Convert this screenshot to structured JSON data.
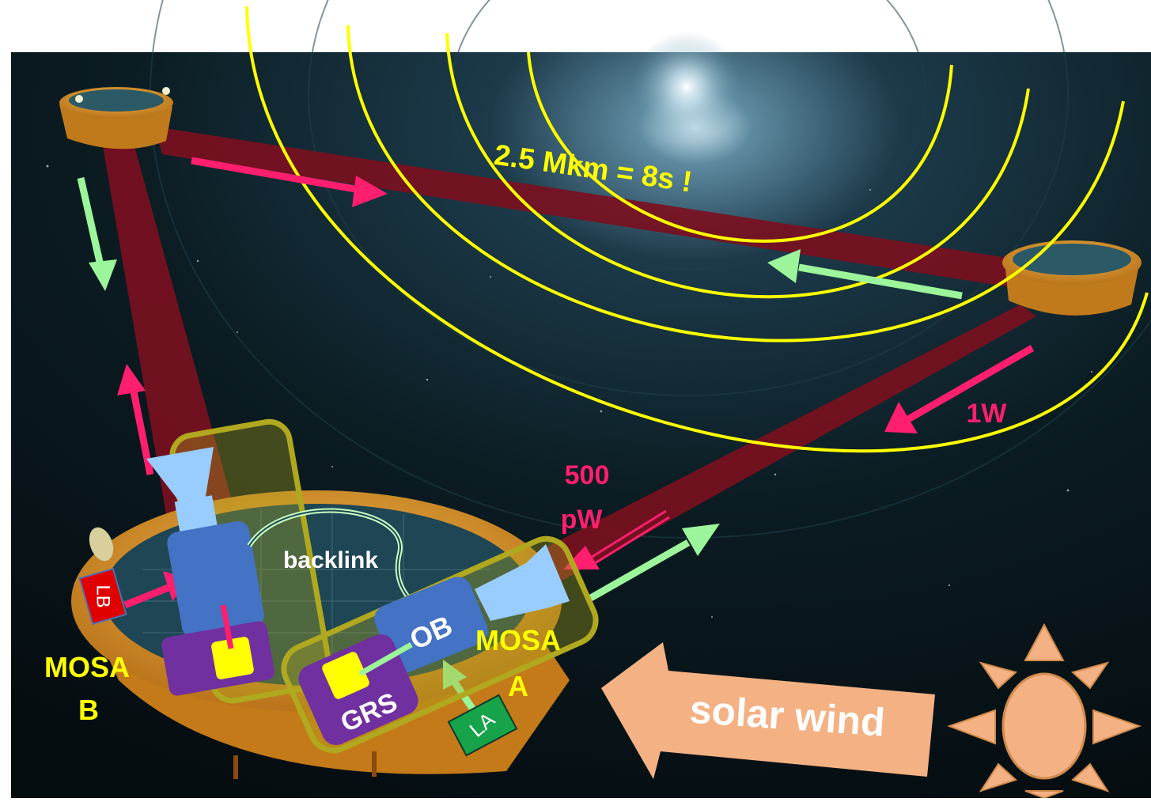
{
  "labels": {
    "distance": "2.5 Mkm = 8s !",
    "power_out": "1W",
    "power_in_line1": "500",
    "power_in_line2": "pW",
    "backlink": "backlink",
    "ob": "OB",
    "grs": "GRS",
    "la": "LA",
    "lb": "LB",
    "mosa_a_line1": "MOSA",
    "mosa_a_line2": "A",
    "mosa_b_line1": "MOSA",
    "mosa_b_line2": "B",
    "solar_wind": "solar wind"
  },
  "colors": {
    "wavefront": "#ffff00",
    "outgoing_beam_arrow": "#ff1f6e",
    "incoming_beam_arrow": "#9cf59a",
    "laser_beam": "#7a1020",
    "mosa_outline": "#b0a81e",
    "telescope": "#99ccff",
    "optical_bench": "#4472c4",
    "grs_box": "#7030a0",
    "test_mass": "#ffff00",
    "laser_a": "#16a34a",
    "laser_b": "#e00000",
    "label_yellow": "#ffff00",
    "label_pink": "#ff1f6e",
    "solar_wind_arrow": "#f4b183",
    "sun": "#f4b183",
    "spacecraft": "#e8a020"
  }
}
